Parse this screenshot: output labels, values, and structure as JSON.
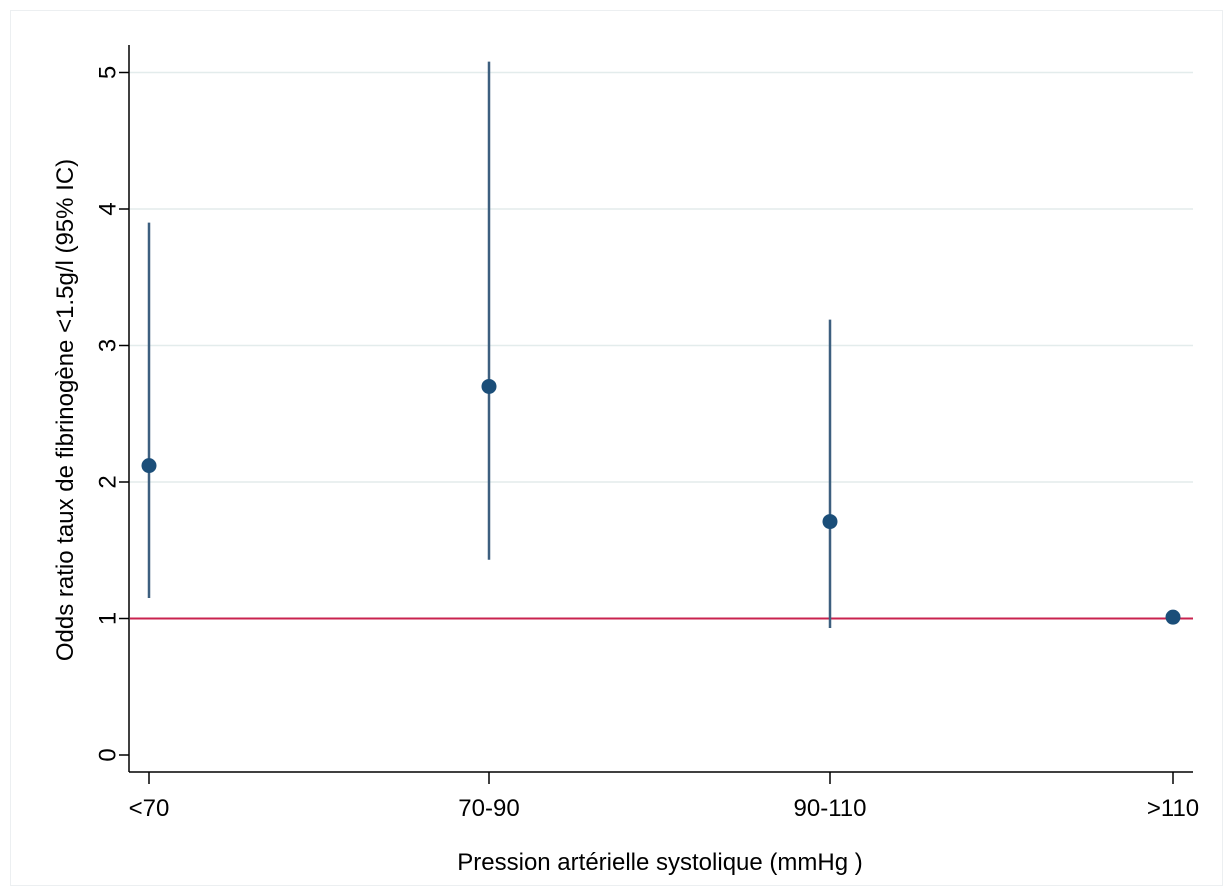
{
  "chart_data": {
    "type": "scatter",
    "subtype": "point-estimate-with-confidence-interval",
    "xlabel": "Pression artérielle systolique (mmHg )",
    "ylabel": "Odds ratio taux de fibrinogène <1.5g/l (95% IC)",
    "categories": [
      "<70",
      "70-90",
      "90-110",
      ">110"
    ],
    "estimates": [
      2.12,
      2.7,
      1.71,
      1.01
    ],
    "ci_lower": [
      1.15,
      1.43,
      0.93,
      null
    ],
    "ci_upper": [
      3.9,
      5.08,
      3.19,
      null
    ],
    "ylim": [
      0,
      5.2
    ],
    "yticks": [
      0,
      1,
      2,
      3,
      4,
      5
    ],
    "reference_line": {
      "y": 1,
      "color": "#c9234f"
    },
    "grid": {
      "horizontal": true,
      "vertical": false,
      "color": "#e3ecec"
    },
    "colors": {
      "marker": "#1b4e79",
      "ci_line": "#3d5f7f",
      "axis": "#000000"
    }
  }
}
